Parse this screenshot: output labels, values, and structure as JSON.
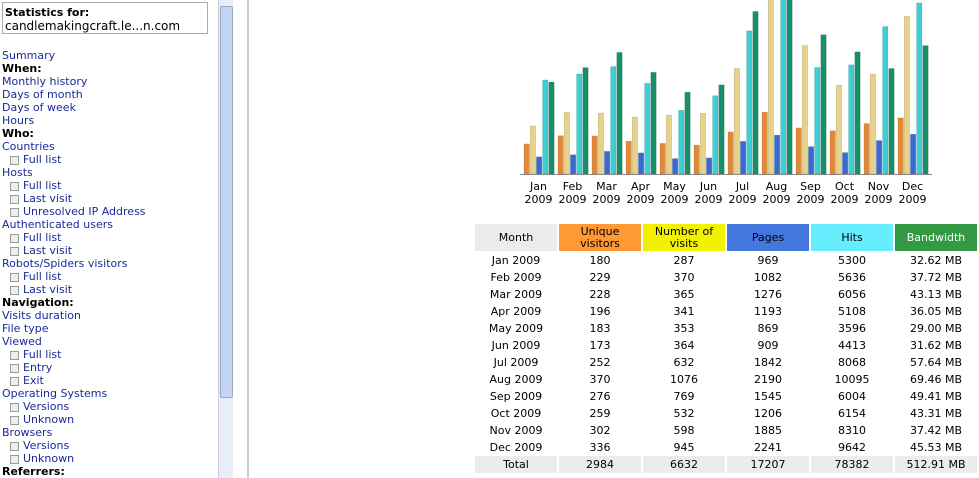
{
  "sidebar": {
    "title": "Statistics for:",
    "site": "candlemakingcraft.le...n.com",
    "menu": [
      {
        "text": "Summary",
        "style": "link"
      },
      {
        "text": "When:",
        "style": "header"
      },
      {
        "text": "Monthly history",
        "style": "link"
      },
      {
        "text": "Days of month",
        "style": "link"
      },
      {
        "text": "Days of week",
        "style": "link"
      },
      {
        "text": "Hours",
        "style": "link"
      },
      {
        "text": "Who:",
        "style": "header"
      },
      {
        "text": "Countries",
        "style": "link"
      },
      {
        "text": "Full list",
        "style": "sub"
      },
      {
        "text": "Hosts",
        "style": "link"
      },
      {
        "text": "Full list",
        "style": "sub"
      },
      {
        "text": "Last visit",
        "style": "sub"
      },
      {
        "text": "Unresolved IP Address",
        "style": "sub"
      },
      {
        "text": "Authenticated users",
        "style": "link"
      },
      {
        "text": "Full list",
        "style": "sub"
      },
      {
        "text": "Last visit",
        "style": "sub"
      },
      {
        "text": "Robots/Spiders visitors",
        "style": "link"
      },
      {
        "text": "Full list",
        "style": "sub"
      },
      {
        "text": "Last visit",
        "style": "sub"
      },
      {
        "text": "Navigation:",
        "style": "header"
      },
      {
        "text": "Visits duration",
        "style": "link"
      },
      {
        "text": "File type",
        "style": "link"
      },
      {
        "text": "Viewed",
        "style": "link"
      },
      {
        "text": "Full list",
        "style": "sub"
      },
      {
        "text": "Entry",
        "style": "sub"
      },
      {
        "text": "Exit",
        "style": "sub"
      },
      {
        "text": "Operating Systems",
        "style": "link"
      },
      {
        "text": "Versions",
        "style": "sub"
      },
      {
        "text": "Unknown",
        "style": "sub"
      },
      {
        "text": "Browsers",
        "style": "link"
      },
      {
        "text": "Versions",
        "style": "sub"
      },
      {
        "text": "Unknown",
        "style": "sub"
      },
      {
        "text": "Referrers:",
        "style": "header"
      }
    ]
  },
  "chart": {
    "months": [
      "Jan",
      "Feb",
      "Mar",
      "Apr",
      "May",
      "Jun",
      "Jul",
      "Aug",
      "Sep",
      "Oct",
      "Nov",
      "Dec"
    ],
    "years": [
      "2009",
      "2009",
      "2009",
      "2009",
      "2009",
      "2009",
      "2009",
      "2009",
      "2009",
      "2009",
      "2009",
      "2009"
    ],
    "colors": {
      "visitors": "#e08a3a",
      "visits": "#e6d28a",
      "pages": "#3a6ad0",
      "hits": "#3ccfd6",
      "bandwidth": "#14906a"
    }
  },
  "table": {
    "headers": [
      "Month",
      "Unique visitors",
      "Number of visits",
      "Pages",
      "Hits",
      "Bandwidth"
    ],
    "header_colors": [
      "#ececec",
      "#ff9933",
      "#f2f200",
      "#4477dd",
      "#66eeff",
      "#339944"
    ],
    "months": [
      "Jan 2009",
      "Feb 2009",
      "Mar 2009",
      "Apr 2009",
      "May 2009",
      "Jun 2009",
      "Jul 2009",
      "Aug 2009",
      "Sep 2009",
      "Oct 2009",
      "Nov 2009",
      "Dec 2009"
    ],
    "visitors": [
      180,
      229,
      228,
      196,
      183,
      173,
      252,
      370,
      276,
      259,
      302,
      336
    ],
    "visits": [
      287,
      370,
      365,
      341,
      353,
      364,
      632,
      1076,
      769,
      532,
      598,
      945
    ],
    "pages": [
      969,
      1082,
      1276,
      1193,
      869,
      909,
      1842,
      2190,
      1545,
      1206,
      1885,
      2241
    ],
    "hits": [
      5300,
      5636,
      6056,
      5108,
      3596,
      4413,
      8068,
      10095,
      6004,
      6154,
      8310,
      9642
    ],
    "bandwidth": [
      32.62,
      37.72,
      43.13,
      36.05,
      29.0,
      31.62,
      57.64,
      69.46,
      49.41,
      43.31,
      37.42,
      45.53
    ],
    "bandwidth_labels": [
      "32.62 MB",
      "37.72 MB",
      "43.13 MB",
      "36.05 MB",
      "29.00 MB",
      "31.62 MB",
      "57.64 MB",
      "69.46 MB",
      "49.41 MB",
      "43.31 MB",
      "37.42 MB",
      "45.53 MB"
    ],
    "total": {
      "label": "Total",
      "visitors": 2984,
      "visits": 6632,
      "pages": 17207,
      "hits": 78382,
      "bandwidth_label": "512.91 MB"
    }
  }
}
